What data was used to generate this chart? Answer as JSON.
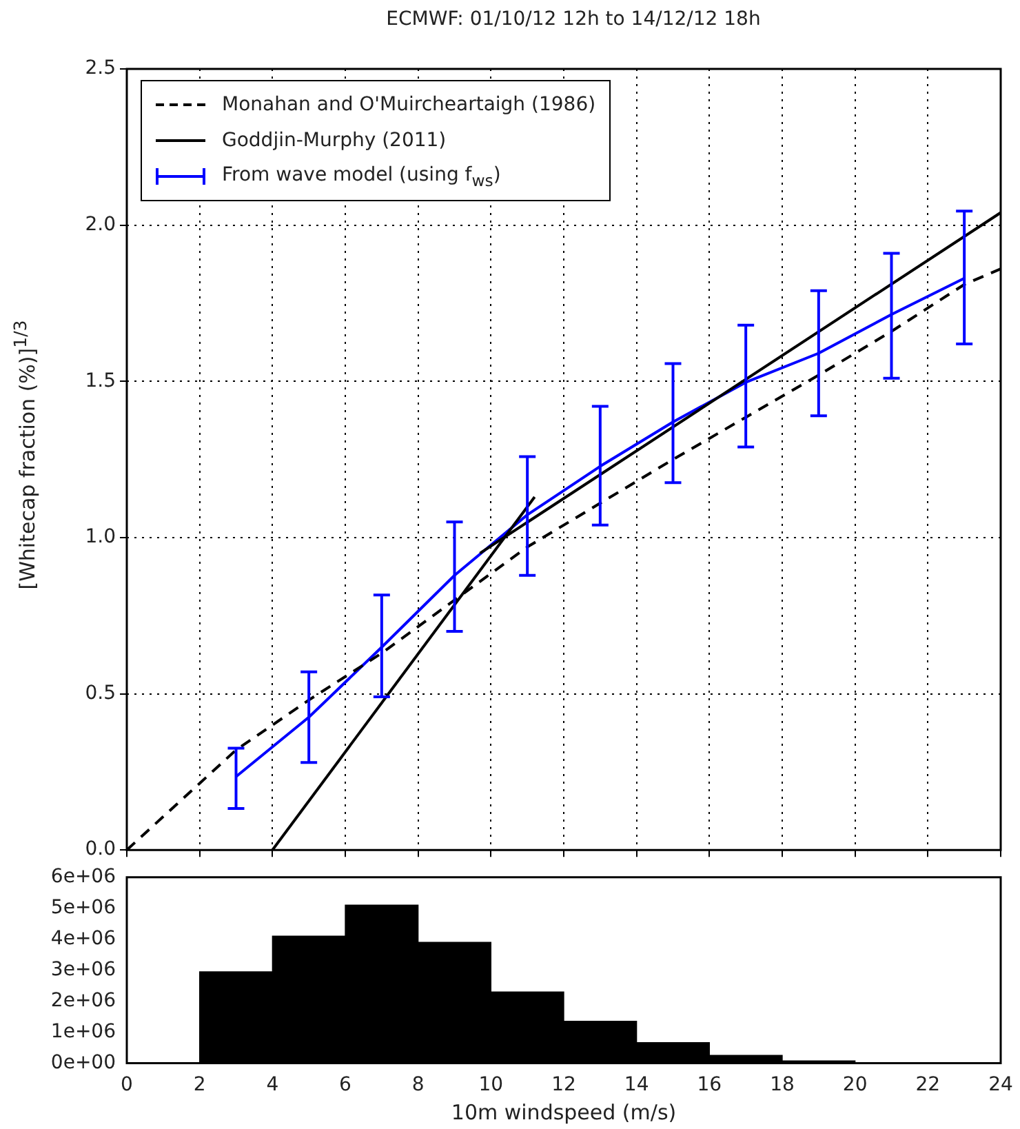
{
  "chart_data": [
    {
      "type": "line",
      "title": "ECMWF: 01/10/12 12h to 14/12/12 18h",
      "ylabel": "[Whitecap fraction (%)]$^{1/3}$",
      "xlim": [
        0,
        24
      ],
      "xticks": [
        0,
        2,
        4,
        6,
        8,
        10,
        12,
        14,
        16,
        18,
        20,
        22,
        24
      ],
      "ylim": [
        0,
        2.5
      ],
      "yticks": [
        {
          "value": 0,
          "label": "0.0"
        },
        {
          "value": 0.5,
          "label": "0.5"
        },
        {
          "value": 1,
          "label": "1.0"
        },
        {
          "value": 1.5,
          "label": "1.5"
        },
        {
          "value": 2,
          "label": "2.0"
        },
        {
          "value": 2.5,
          "label": "2.5"
        }
      ],
      "grid": true,
      "legend": "top left",
      "tick_labels": "y",
      "marker": "none",
      "series": [
        {
          "name": "Monahan and O'Muircheartaigh (1986)",
          "color": "#000000",
          "line_style": "dashed",
          "x": [
            0,
            3,
            5,
            7,
            9,
            11,
            13,
            15,
            17,
            19,
            21,
            23,
            24
          ],
          "values": [
            0,
            0.32,
            0.48,
            0.63,
            0.8,
            0.97,
            1.11,
            1.25,
            1.385,
            1.52,
            1.66,
            1.81,
            1.86
          ]
        },
        {
          "name": "Goddjin-Murphy (2011)",
          "color": "#000000",
          "line_style": "solid",
          "x": [
            4,
            11.2
          ],
          "values": [
            0,
            1.13
          ]
        },
        {
          "color": "#000000",
          "line_style": "solid",
          "x": [
            9.7,
            24
          ],
          "values": [
            0.95,
            2.04
          ]
        },
        {
          "name": "From wave model (using f$_{ws}$)",
          "color": "#0000ff",
          "line_style": "solid",
          "x": [
            3,
            5,
            7,
            9,
            11,
            13,
            15,
            17,
            19,
            21,
            23
          ],
          "values": [
            0.235,
            0.425,
            0.649,
            0.879,
            1.073,
            1.228,
            1.37,
            1.497,
            1.59,
            1.714,
            1.83
          ],
          "errors": [
            [
              0.133,
              0.326
            ],
            [
              0.28,
              0.57
            ],
            [
              0.49,
              0.816
            ],
            [
              0.7,
              1.05
            ],
            [
              0.879,
              1.259
            ],
            [
              1.04,
              1.42
            ],
            [
              1.176,
              1.557
            ],
            [
              1.29,
              1.68
            ],
            [
              1.39,
              1.79
            ],
            [
              1.51,
              1.91
            ],
            [
              1.62,
              2.045
            ]
          ]
        }
      ]
    },
    {
      "type": "histogram",
      "xlabel": "10m windspeed (m/s)",
      "bins": [
        0,
        2,
        4,
        6,
        8,
        10,
        12,
        14,
        16,
        18,
        20,
        22,
        24
      ],
      "values": [
        0,
        2950000,
        4100000,
        5100000,
        3900000,
        2300000,
        1350000,
        660000,
        250000,
        70000,
        null,
        null
      ],
      "color": "#000000",
      "xlim": [
        0,
        24
      ],
      "xticks": [
        0,
        2,
        4,
        6,
        8,
        10,
        12,
        14,
        16,
        18,
        20,
        22,
        24
      ],
      "ylim": [
        0,
        6000000
      ],
      "yticks": [
        {
          "value": 0,
          "label": "0e+00"
        },
        {
          "value": 1000000,
          "label": "1e+06"
        },
        {
          "value": 2000000,
          "label": "2e+06"
        },
        {
          "value": 3000000,
          "label": "3e+06"
        },
        {
          "value": 4000000,
          "label": "4e+06"
        },
        {
          "value": 5000000,
          "label": "5e+06"
        },
        {
          "value": 6000000,
          "label": "6e+06"
        }
      ]
    }
  ]
}
